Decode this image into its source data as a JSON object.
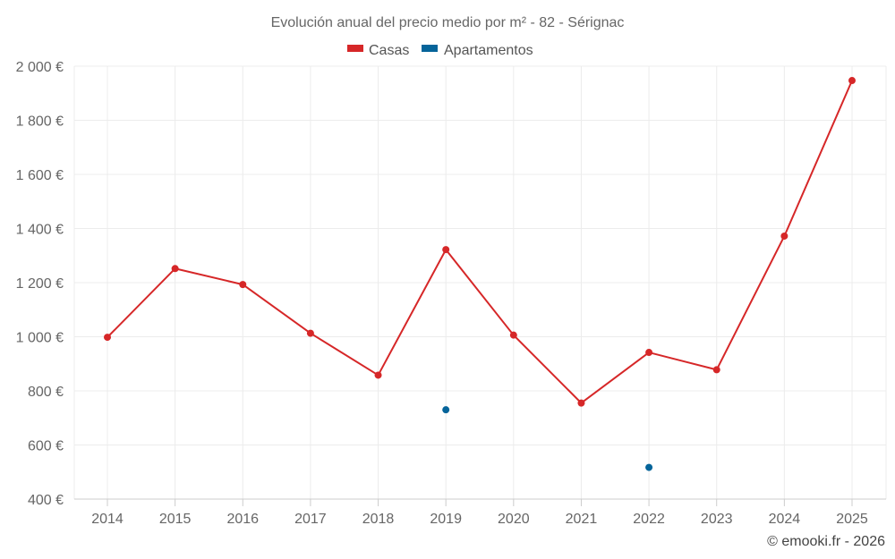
{
  "chart_data": {
    "type": "line",
    "title": "Evolución anual del precio medio por m² - 82 - Sérignac",
    "categories": [
      "2014",
      "2015",
      "2016",
      "2017",
      "2018",
      "2019",
      "2020",
      "2021",
      "2022",
      "2023",
      "2024",
      "2025"
    ],
    "series": [
      {
        "name": "Casas",
        "color": "#d62728",
        "values": [
          998,
          1252,
          1193,
          1013,
          858,
          1322,
          1006,
          755,
          942,
          878,
          1372,
          1947
        ]
      },
      {
        "name": "Apartamentos",
        "color": "#05649a",
        "values": [
          null,
          null,
          null,
          null,
          null,
          730,
          null,
          null,
          517,
          null,
          null,
          null
        ]
      }
    ],
    "ylim": [
      400,
      2000
    ],
    "yticks": [
      400,
      600,
      800,
      1000,
      1200,
      1400,
      1600,
      1800,
      2000
    ],
    "ytick_labels": [
      "400 €",
      "600 €",
      "800 €",
      "1 000 €",
      "1 200 €",
      "1 400 €",
      "1 600 €",
      "1 800 €",
      "2 000 €"
    ],
    "xlabel": "",
    "ylabel": "",
    "grid": true,
    "legend_position": "top-center",
    "credit": "© emooki.fr - 2026"
  }
}
